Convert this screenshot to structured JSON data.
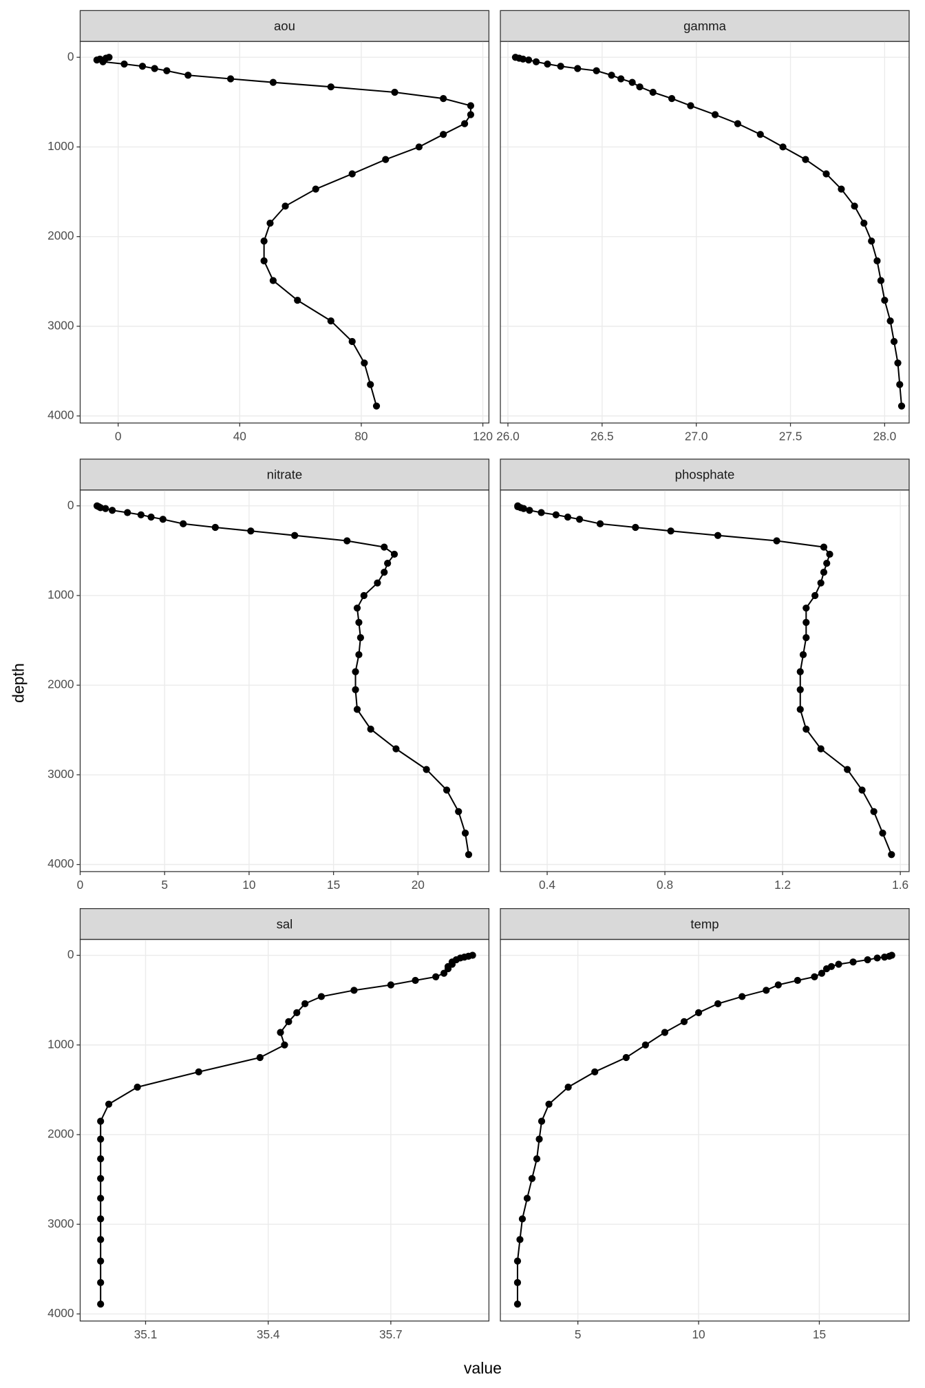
{
  "chart_data": {
    "type": "line",
    "x_label": "value",
    "y_label": "depth",
    "y": [
      0,
      10,
      20,
      30,
      50,
      75,
      100,
      125,
      150,
      200,
      240,
      280,
      330,
      390,
      460,
      540,
      640,
      740,
      860,
      1000,
      1140,
      1300,
      1470,
      1660,
      1850,
      2050,
      2270,
      2490,
      2710,
      2940,
      3170,
      3410,
      3650,
      3890
    ],
    "ylim": [
      -177,
      4079
    ],
    "y_reversed": true,
    "yticks": [
      0,
      1000,
      2000,
      3000,
      4000
    ],
    "color": "#000000",
    "grid": true,
    "panels": [
      {
        "strip": "aou",
        "xlim": [
          -12.5,
          122
        ],
        "xticks": [
          0,
          40,
          80,
          120
        ],
        "values": [
          -3,
          -4,
          -6,
          -7,
          -5,
          2,
          8,
          12,
          16,
          23,
          37,
          51,
          70,
          91,
          107,
          116,
          116,
          114,
          107,
          99,
          88,
          77,
          65,
          55,
          50,
          48,
          48,
          51,
          59,
          70,
          77,
          81,
          83,
          85
        ]
      },
      {
        "strip": "gamma",
        "xlim": [
          25.96,
          28.13
        ],
        "xticks": [
          {
            "value": 26,
            "label": "26.0"
          },
          26.5,
          {
            "value": 27,
            "label": "27.0"
          },
          27.5,
          {
            "value": 28,
            "label": "28.0"
          }
        ],
        "values": [
          26.04,
          26.06,
          26.08,
          26.11,
          26.15,
          26.21,
          26.28,
          26.37,
          26.47,
          26.55,
          26.6,
          26.66,
          26.7,
          26.77,
          26.87,
          26.97,
          27.1,
          27.22,
          27.34,
          27.46,
          27.58,
          27.69,
          27.77,
          27.84,
          27.89,
          27.93,
          27.96,
          27.98,
          28.0,
          28.03,
          28.05,
          28.07,
          28.08,
          28.09
        ]
      },
      {
        "strip": "nitrate",
        "xlim": [
          0,
          24.2
        ],
        "xticks": [
          0,
          5,
          10,
          15,
          20
        ],
        "values": [
          1.0,
          1.1,
          1.2,
          1.5,
          1.9,
          2.8,
          3.6,
          4.2,
          4.9,
          6.1,
          8.0,
          10.1,
          12.7,
          15.8,
          18.0,
          18.6,
          18.2,
          18.0,
          17.6,
          16.8,
          16.4,
          16.5,
          16.6,
          16.5,
          16.3,
          16.3,
          16.4,
          17.2,
          18.7,
          20.5,
          21.7,
          22.4,
          22.8,
          23.0
        ]
      },
      {
        "strip": "phosphate",
        "xlim": [
          0.241,
          1.63
        ],
        "xticks": [
          0.4,
          0.8,
          1.2,
          1.6
        ],
        "values": [
          0.3,
          0.3,
          0.31,
          0.32,
          0.34,
          0.38,
          0.43,
          0.47,
          0.51,
          0.58,
          0.7,
          0.82,
          0.98,
          1.18,
          1.34,
          1.36,
          1.35,
          1.34,
          1.33,
          1.31,
          1.28,
          1.28,
          1.28,
          1.27,
          1.26,
          1.26,
          1.26,
          1.28,
          1.33,
          1.42,
          1.47,
          1.51,
          1.54,
          1.57
        ]
      },
      {
        "strip": "sal",
        "xlim": [
          34.94,
          35.94
        ],
        "xticks": [
          35.1,
          35.4,
          35.7
        ],
        "values": [
          35.9,
          35.89,
          35.88,
          35.87,
          35.86,
          35.85,
          35.85,
          35.84,
          35.84,
          35.83,
          35.81,
          35.76,
          35.7,
          35.61,
          35.53,
          35.49,
          35.47,
          35.45,
          35.43,
          35.44,
          35.38,
          35.23,
          35.08,
          35.01,
          34.99,
          34.99,
          34.99,
          34.99,
          34.99,
          34.99,
          34.99,
          34.99,
          34.99,
          34.99
        ]
      },
      {
        "strip": "temp",
        "xlim": [
          1.79,
          18.72
        ],
        "xticks": [
          5,
          10,
          15
        ],
        "values": [
          18.0,
          17.9,
          17.7,
          17.4,
          17.0,
          16.4,
          15.8,
          15.5,
          15.3,
          15.1,
          14.8,
          14.1,
          13.3,
          12.8,
          11.8,
          10.8,
          10.0,
          9.4,
          8.6,
          7.8,
          7.0,
          5.7,
          4.6,
          3.8,
          3.5,
          3.4,
          3.3,
          3.1,
          2.9,
          2.7,
          2.6,
          2.5,
          2.5,
          2.5
        ]
      }
    ]
  }
}
